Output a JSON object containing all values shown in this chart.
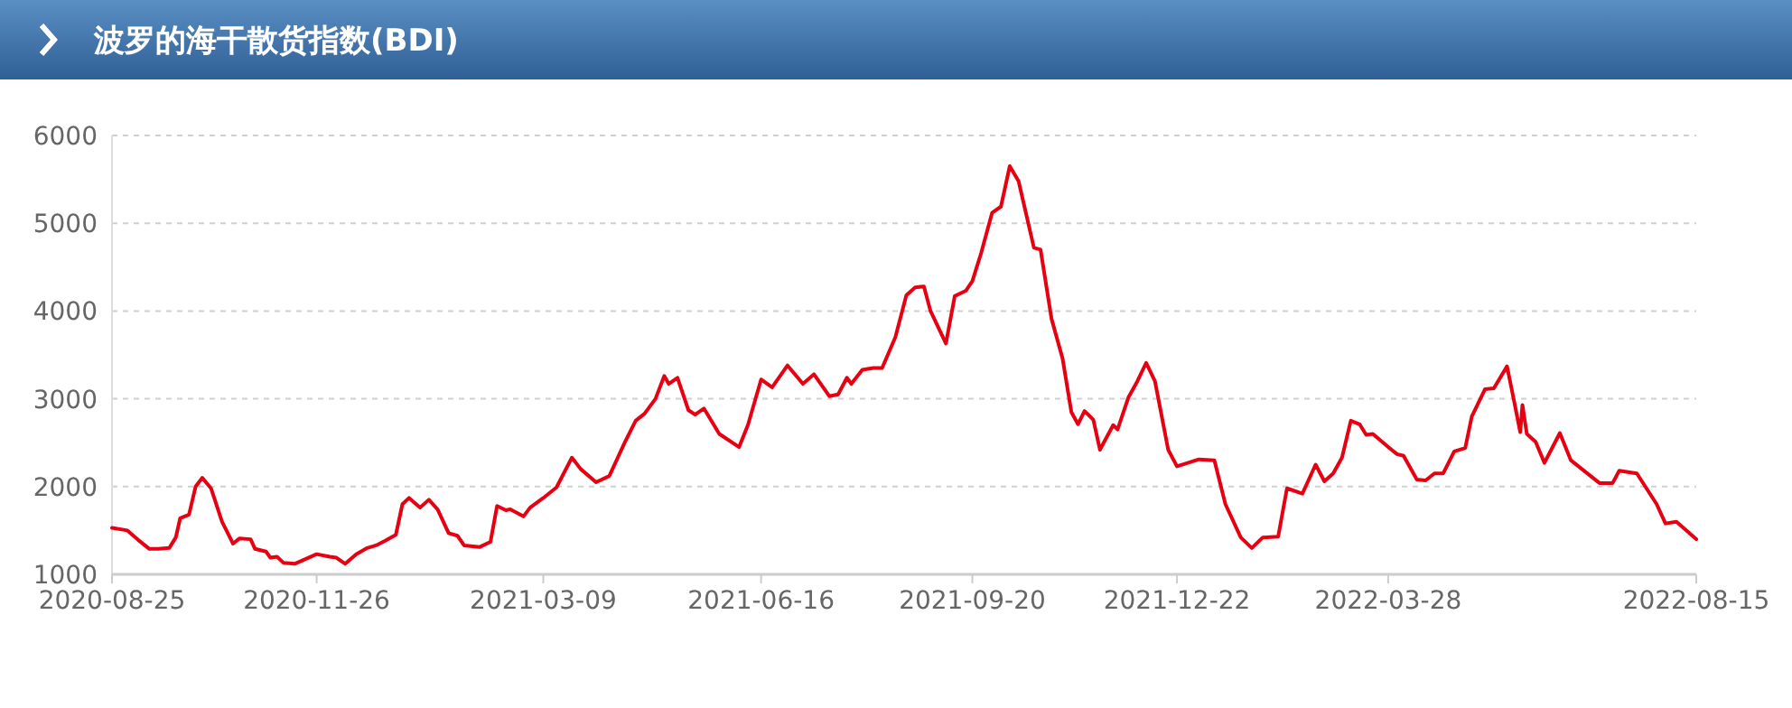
{
  "chart_data": {
    "type": "line",
    "title": "波罗的海干散货指数(BDI)",
    "x": [
      "2020-08-25",
      "2020-09-01",
      "2020-09-06",
      "2020-09-11",
      "2020-09-15",
      "2020-09-20",
      "2020-09-23",
      "2020-09-25",
      "2020-09-29",
      "2020-10-02",
      "2020-10-05",
      "2020-10-09",
      "2020-10-14",
      "2020-10-19",
      "2020-10-22",
      "2020-10-27",
      "2020-10-29",
      "2020-11-03",
      "2020-11-05",
      "2020-11-08",
      "2020-11-11",
      "2020-11-16",
      "2020-11-26",
      "2020-12-02",
      "2020-12-05",
      "2020-12-09",
      "2020-12-14",
      "2020-12-19",
      "2020-12-23",
      "2020-12-27",
      "2021-01-01",
      "2021-01-04",
      "2021-01-07",
      "2021-01-12",
      "2021-01-16",
      "2021-01-20",
      "2021-01-25",
      "2021-01-29",
      "2021-02-01",
      "2021-02-08",
      "2021-02-13",
      "2021-02-16",
      "2021-02-20",
      "2021-02-22",
      "2021-02-28",
      "2021-03-03",
      "2021-03-09",
      "2021-03-15",
      "2021-03-22",
      "2021-03-26",
      "2021-04-02",
      "2021-04-08",
      "2021-04-15",
      "2021-04-20",
      "2021-04-24",
      "2021-04-29",
      "2021-05-03",
      "2021-05-05",
      "2021-05-09",
      "2021-05-14",
      "2021-05-17",
      "2021-05-21",
      "2021-05-28",
      "2021-06-06",
      "2021-06-10",
      "2021-06-16",
      "2021-06-21",
      "2021-06-28",
      "2021-07-05",
      "2021-07-10",
      "2021-07-17",
      "2021-07-21",
      "2021-07-25",
      "2021-07-27",
      "2021-08-01",
      "2021-08-06",
      "2021-08-10",
      "2021-08-16",
      "2021-08-21",
      "2021-08-25",
      "2021-08-29",
      "2021-09-01",
      "2021-09-08",
      "2021-09-12",
      "2021-09-17",
      "2021-09-20",
      "2021-09-24",
      "2021-09-29",
      "2021-10-03",
      "2021-10-07",
      "2021-10-11",
      "2021-10-18",
      "2021-10-21",
      "2021-10-26",
      "2021-10-31",
      "2021-11-04",
      "2021-11-07",
      "2021-11-10",
      "2021-11-14",
      "2021-11-17",
      "2021-11-23",
      "2021-11-25",
      "2021-11-30",
      "2021-12-04",
      "2021-12-08",
      "2021-12-12",
      "2021-12-18",
      "2021-12-22",
      "2022-01-01",
      "2022-01-08",
      "2022-01-13",
      "2022-01-20",
      "2022-01-25",
      "2022-01-30",
      "2022-02-06",
      "2022-02-10",
      "2022-02-17",
      "2022-02-23",
      "2022-02-27",
      "2022-03-03",
      "2022-03-07",
      "2022-03-11",
      "2022-03-15",
      "2022-03-18",
      "2022-03-21",
      "2022-03-28",
      "2022-04-01",
      "2022-04-04",
      "2022-04-10",
      "2022-04-14",
      "2022-04-18",
      "2022-04-22",
      "2022-04-27",
      "2022-05-02",
      "2022-05-05",
      "2022-05-11",
      "2022-05-15",
      "2022-05-21",
      "2022-05-24",
      "2022-05-27",
      "2022-05-28",
      "2022-05-30",
      "2022-06-03",
      "2022-06-07",
      "2022-06-14",
      "2022-06-19",
      "2022-06-24",
      "2022-07-02",
      "2022-07-08",
      "2022-07-11",
      "2022-07-19",
      "2022-07-28",
      "2022-08-01",
      "2022-08-06",
      "2022-08-15"
    ],
    "values": [
      1530,
      1500,
      1390,
      1290,
      1290,
      1300,
      1420,
      1640,
      1680,
      2000,
      2100,
      1980,
      1600,
      1350,
      1410,
      1400,
      1290,
      1260,
      1190,
      1200,
      1130,
      1120,
      1230,
      1200,
      1190,
      1120,
      1230,
      1300,
      1330,
      1380,
      1450,
      1800,
      1870,
      1760,
      1850,
      1740,
      1470,
      1440,
      1330,
      1310,
      1370,
      1780,
      1730,
      1740,
      1660,
      1760,
      1870,
      1990,
      2330,
      2200,
      2050,
      2120,
      2500,
      2750,
      2830,
      3000,
      3260,
      3170,
      3240,
      2870,
      2820,
      2890,
      2600,
      2450,
      2700,
      3220,
      3130,
      3380,
      3170,
      3280,
      3030,
      3050,
      3240,
      3170,
      3330,
      3350,
      3350,
      3700,
      4180,
      4270,
      4280,
      4000,
      3630,
      4170,
      4230,
      4340,
      4660,
      5120,
      5190,
      5650,
      5480,
      4720,
      4700,
      3910,
      3460,
      2850,
      2710,
      2860,
      2760,
      2420,
      2700,
      2650,
      3020,
      3200,
      3410,
      3200,
      2420,
      2230,
      2310,
      2300,
      1800,
      1420,
      1300,
      1420,
      1430,
      1980,
      1920,
      2250,
      2060,
      2150,
      2330,
      2750,
      2710,
      2590,
      2600,
      2450,
      2370,
      2350,
      2080,
      2070,
      2150,
      2150,
      2400,
      2440,
      2800,
      3110,
      3120,
      3370,
      3000,
      2620,
      2930,
      2600,
      2510,
      2270,
      2610,
      2300,
      2200,
      2040,
      2040,
      2180,
      2150,
      1800,
      1580,
      1600,
      1400
    ],
    "color": "#e60012",
    "xlim": [
      "2020-08-25",
      "2022-08-15"
    ],
    "xticks": [
      "2020-08-25",
      "2020-11-26",
      "2021-03-09",
      "2021-06-16",
      "2021-09-20",
      "2021-12-22",
      "2022-03-28",
      "2022-08-15"
    ],
    "ylim": [
      1000,
      6000
    ],
    "yticks": [
      1000,
      2000,
      3000,
      4000,
      5000,
      6000
    ],
    "grid": "y"
  }
}
